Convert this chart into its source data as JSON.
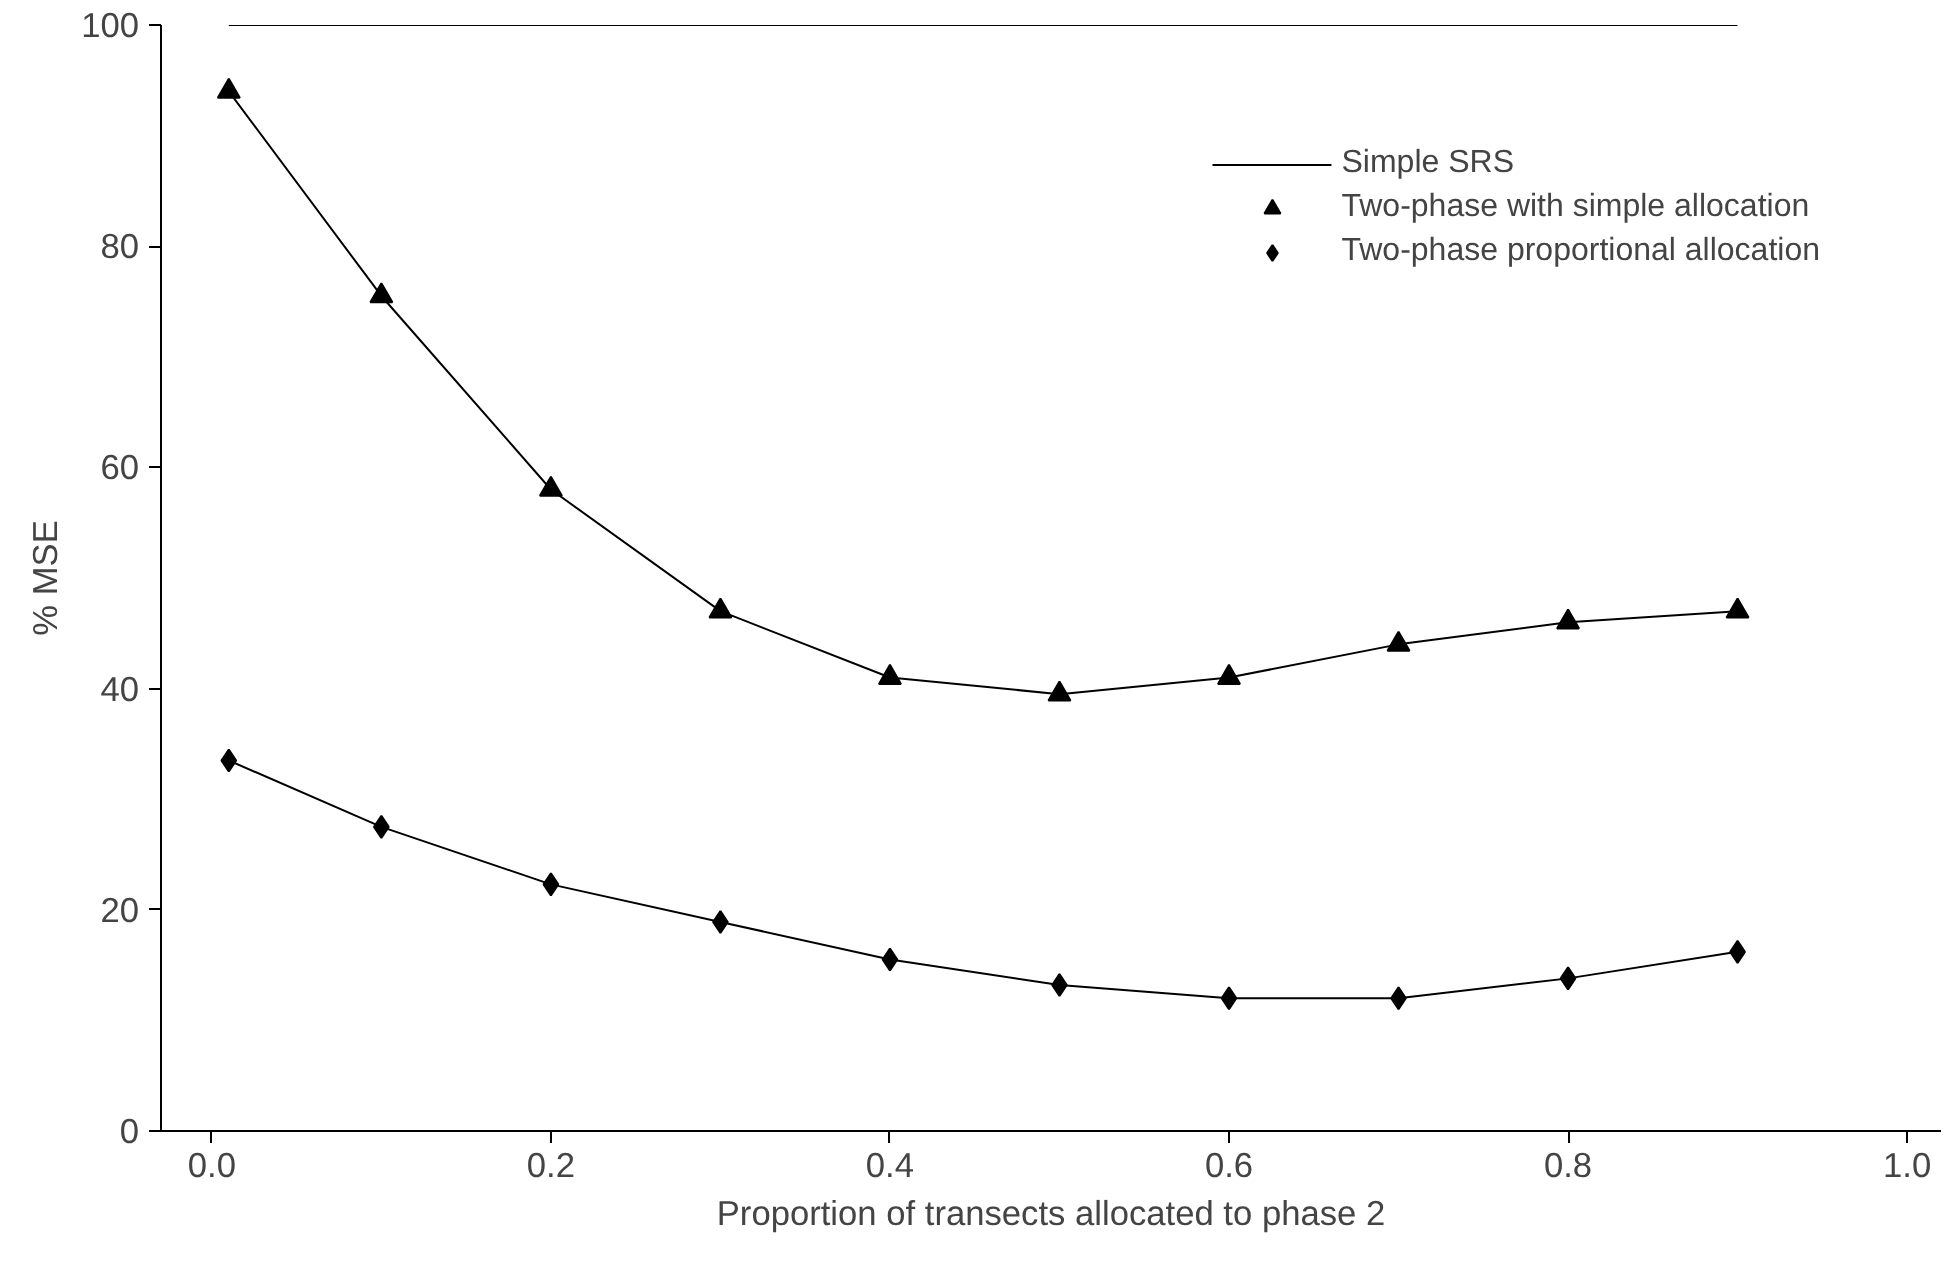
{
  "chart_data": {
    "type": "line",
    "xlabel": "Proportion of transects allocated to phase 2",
    "ylabel": "% MSE",
    "x": [
      0.01,
      0.1,
      0.2,
      0.3,
      0.4,
      0.5,
      0.6,
      0.7,
      0.8,
      0.9
    ],
    "series": [
      {
        "name": "Simple SRS",
        "color": "#000000",
        "marker": "none",
        "values": [
          100,
          100,
          100,
          100,
          100,
          100,
          100,
          100,
          100,
          100
        ]
      },
      {
        "name": "Two-phase with simple allocation",
        "color": "#000000",
        "marker": "triangle",
        "values": [
          94,
          75.5,
          58,
          47,
          41,
          39.5,
          41,
          44,
          46,
          47
        ]
      },
      {
        "name": "Two-phase proportional allocation",
        "color": "#000000",
        "marker": "diamond",
        "values": [
          33.5,
          27.5,
          22.3,
          18.9,
          15.5,
          13.2,
          12,
          12,
          13.8,
          16.2
        ]
      }
    ],
    "xlim": [
      -0.03,
      1.02
    ],
    "ylim": [
      0,
      100
    ],
    "xticks": [
      {
        "value": 0,
        "label": "0.0"
      },
      0.2,
      0.4,
      0.6,
      0.8,
      {
        "value": 1,
        "label": "1.0"
      }
    ],
    "yticks": [
      0,
      20,
      40,
      60,
      80,
      100
    ],
    "line_style": "solid",
    "grid": false,
    "legend": "top right"
  }
}
